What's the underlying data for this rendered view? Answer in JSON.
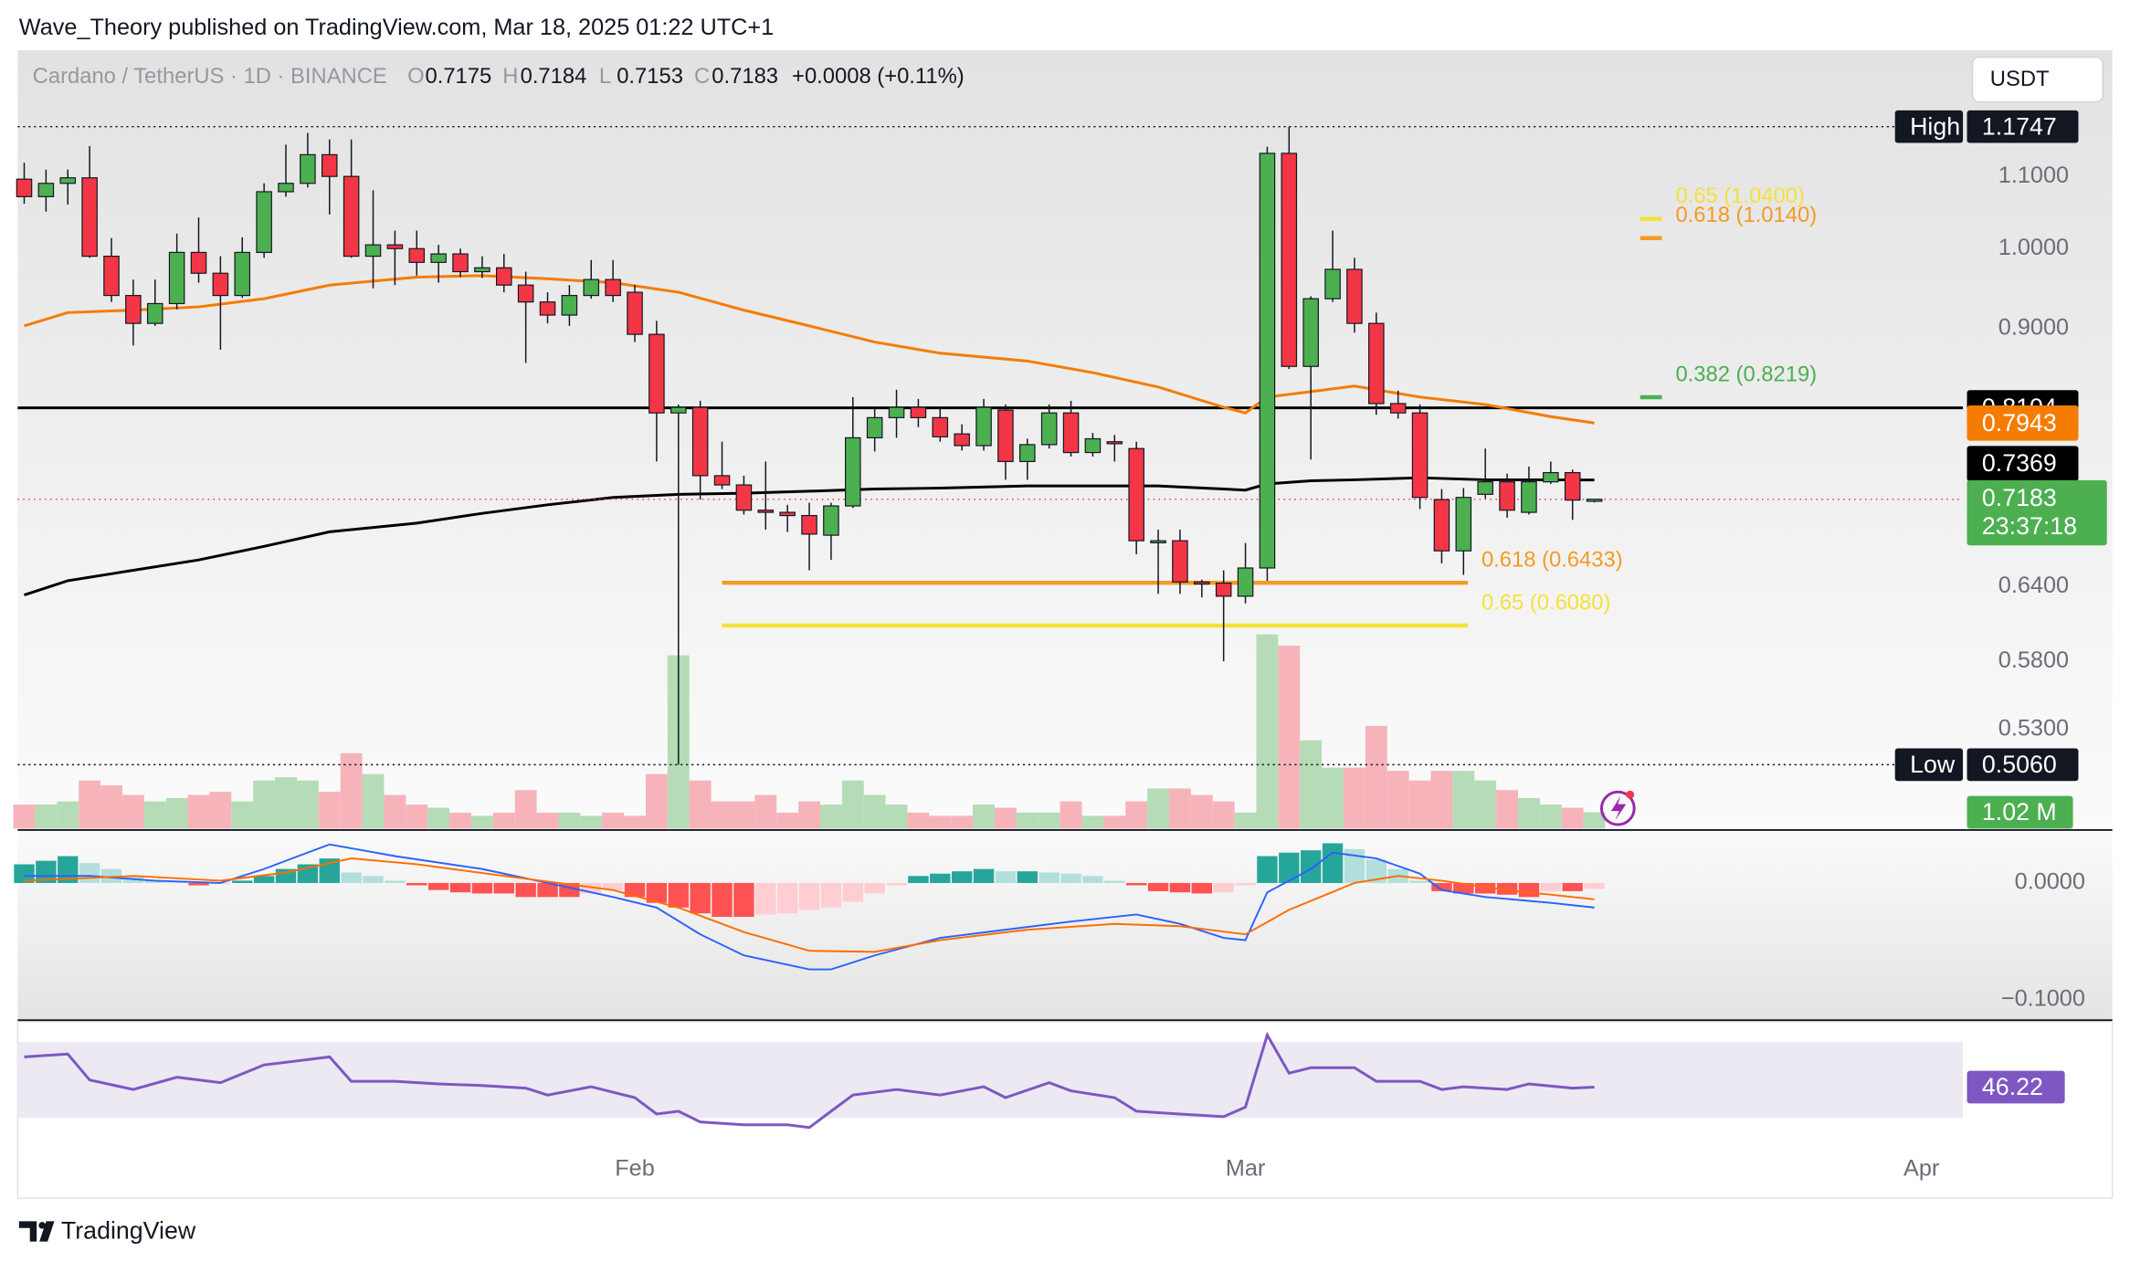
{
  "header": {
    "text": "Wave_Theory published on TradingView.com, Mar 18, 2025 01:22 UTC+1"
  },
  "footer": {
    "brand": "TradingView"
  },
  "chart_data": {
    "type": "candlestick",
    "symbol": "Cardano / TetherUS · 1D · BINANCE",
    "currency": "USDT",
    "ohlc_letters": [
      "O",
      "H",
      "L",
      "C"
    ],
    "change_label": "+0.0008 (+0.11%)",
    "countdown": "23:37:18",
    "open": [
      1.096,
      1.071,
      1.09,
      1.098,
      0.99,
      0.94,
      0.906,
      0.93,
      0.995,
      0.968,
      0.94,
      0.995,
      1.078,
      1.09,
      1.132,
      1.1,
      0.99,
      1.005,
      1.0,
      0.982,
      0.993,
      0.97,
      0.975,
      0.953,
      0.932,
      0.916,
      0.94,
      0.96,
      0.944,
      0.893,
      0.805,
      0.811,
      0.741,
      0.732,
      0.708,
      0.706,
      0.703,
      0.685,
      0.712,
      0.779,
      0.8,
      0.811,
      0.8,
      0.783,
      0.771,
      0.808,
      0.755,
      0.772,
      0.805,
      0.764,
      0.775,
      0.768,
      0.68,
      0.68,
      0.644,
      0.643,
      0.632,
      0.656,
      1.134,
      0.856,
      0.936,
      0.973,
      0.906,
      0.815,
      0.805,
      0.718,
      0.671,
      0.723,
      0.735,
      0.706,
      0.735,
      0.744,
      0.7175
    ],
    "high": [
      1.12,
      1.11,
      1.11,
      1.145,
      1.014,
      0.96,
      0.96,
      1.02,
      1.042,
      0.99,
      1.015,
      1.09,
      1.147,
      1.165,
      1.155,
      1.155,
      1.08,
      1.024,
      1.024,
      1.005,
      1.0,
      0.99,
      0.993,
      0.97,
      0.944,
      0.953,
      0.985,
      0.985,
      0.953,
      0.909,
      0.814,
      0.818,
      0.775,
      0.741,
      0.755,
      0.713,
      0.715,
      0.715,
      0.822,
      0.811,
      0.83,
      0.82,
      0.811,
      0.793,
      0.82,
      0.814,
      0.778,
      0.814,
      0.818,
      0.784,
      0.782,
      0.775,
      0.69,
      0.69,
      0.646,
      0.654,
      0.678,
      1.144,
      1.1747,
      0.939,
      1.024,
      0.988,
      0.919,
      0.829,
      0.814,
      0.728,
      0.729,
      0.768,
      0.743,
      0.75,
      0.755,
      0.747,
      0.7184
    ],
    "low": [
      1.061,
      1.05,
      1.06,
      0.988,
      0.932,
      0.88,
      0.903,
      0.923,
      0.956,
      0.875,
      0.937,
      0.988,
      1.071,
      1.084,
      1.046,
      0.988,
      0.949,
      0.953,
      0.965,
      0.956,
      0.963,
      0.962,
      0.944,
      0.86,
      0.906,
      0.903,
      0.936,
      0.932,
      0.884,
      0.755,
      0.506,
      0.718,
      0.728,
      0.704,
      0.69,
      0.688,
      0.654,
      0.663,
      0.71,
      0.765,
      0.779,
      0.79,
      0.775,
      0.766,
      0.766,
      0.737,
      0.737,
      0.768,
      0.76,
      0.76,
      0.755,
      0.668,
      0.634,
      0.634,
      0.631,
      0.58,
      0.626,
      0.645,
      0.853,
      0.757,
      0.932,
      0.895,
      0.803,
      0.799,
      0.709,
      0.66,
      0.65,
      0.719,
      0.701,
      0.704,
      0.733,
      0.699,
      0.7153
    ],
    "close": [
      1.071,
      1.09,
      1.098,
      0.99,
      0.94,
      0.906,
      0.93,
      0.995,
      0.968,
      0.94,
      0.995,
      1.078,
      1.09,
      1.132,
      1.1,
      0.99,
      1.005,
      1.0,
      0.982,
      0.993,
      0.97,
      0.975,
      0.953,
      0.932,
      0.916,
      0.94,
      0.96,
      0.94,
      0.893,
      0.805,
      0.811,
      0.741,
      0.732,
      0.708,
      0.706,
      0.703,
      0.686,
      0.712,
      0.779,
      0.8,
      0.811,
      0.8,
      0.78,
      0.771,
      0.811,
      0.755,
      0.772,
      0.805,
      0.764,
      0.778,
      0.774,
      0.68,
      0.68,
      0.644,
      0.643,
      0.632,
      0.656,
      1.134,
      0.856,
      0.936,
      0.973,
      0.906,
      0.815,
      0.805,
      0.72,
      0.671,
      0.72,
      0.735,
      0.708,
      0.735,
      0.744,
      0.7175,
      0.7183
    ],
    "up_color": "#4caf50",
    "down_color": "#f23645",
    "xlim": [
      -0.3,
      88.9
    ],
    "xticks": [
      {
        "value": 28,
        "label": "Feb"
      },
      {
        "value": 56,
        "label": "Mar"
      },
      {
        "value": 87,
        "label": "Apr"
      }
    ],
    "log_scale": true,
    "ylim": [
      0.465,
      1.297
    ],
    "yticks": [
      {
        "value": 1.1,
        "label": "1.1000"
      },
      {
        "value": 1.0,
        "label": "1.0000"
      },
      {
        "value": 0.9,
        "label": "0.9000"
      },
      {
        "value": 0.64,
        "label": "0.6400"
      },
      {
        "value": 0.58,
        "label": "0.5800"
      },
      {
        "value": 0.53,
        "label": "0.5300"
      }
    ],
    "moving_averages": [
      {
        "color": "#f57c00",
        "x": [
          0,
          2,
          5,
          8,
          11,
          14,
          18,
          21,
          24,
          27,
          30,
          33,
          36,
          39,
          42,
          46,
          49,
          52,
          55,
          56,
          57,
          59,
          61,
          64,
          67,
          70,
          72
        ],
        "values": [
          0.903,
          0.919,
          0.922,
          0.926,
          0.936,
          0.953,
          0.963,
          0.965,
          0.961,
          0.956,
          0.944,
          0.922,
          0.903,
          0.884,
          0.871,
          0.862,
          0.849,
          0.833,
          0.811,
          0.805,
          0.822,
          0.828,
          0.834,
          0.822,
          0.814,
          0.801,
          0.7943
        ]
      },
      {
        "color": "#000000",
        "x": [
          0,
          2,
          5,
          8,
          11,
          14,
          18,
          21,
          24,
          27,
          30,
          33,
          36,
          39,
          42,
          46,
          49,
          52,
          55,
          56,
          57,
          59,
          61,
          64,
          67,
          70,
          72
        ],
        "values": [
          0.633,
          0.645,
          0.654,
          0.663,
          0.675,
          0.688,
          0.696,
          0.705,
          0.713,
          0.72,
          0.723,
          0.724,
          0.726,
          0.728,
          0.729,
          0.731,
          0.731,
          0.731,
          0.728,
          0.727,
          0.733,
          0.736,
          0.737,
          0.739,
          0.737,
          0.737,
          0.7369
        ]
      }
    ],
    "levels": [
      {
        "value": 0.8104,
        "color": "#000000"
      }
    ],
    "extremes": [
      {
        "label": "High",
        "value": 1.1747
      },
      {
        "label": "Low",
        "value": 0.506,
        "value_label": "0.5060"
      }
    ],
    "fib_levels": [
      {
        "label": "0.618 (0.6433)",
        "value": 0.6433,
        "color": "#f59a23",
        "x": [
          32,
          66.2
        ]
      },
      {
        "label": "0.65 (0.6080)",
        "value": 0.608,
        "color": "#f5e13a",
        "x": [
          32,
          66.2
        ]
      },
      {
        "label": "0.382 (0.8219)",
        "value": 0.8219,
        "color": "#4caf50",
        "x": [
          74.1,
          75.1
        ]
      },
      {
        "label": "0.618 (1.0140)",
        "value": 1.014,
        "color": "#f59a23",
        "x": [
          74.1,
          75.1
        ]
      },
      {
        "label": "0.65 (1.0400)",
        "value": 1.04,
        "color": "#f5e13a",
        "x": [
          74.1,
          75.1
        ]
      }
    ],
    "volume": {
      "up_color": "#b5dcb6",
      "down_color": "#f6b4ba",
      "last_label": "1.02 M",
      "values": [
        1.5,
        1.5,
        1.7,
        3.0,
        2.7,
        2.1,
        1.7,
        1.9,
        2.1,
        2.3,
        1.7,
        3.0,
        3.2,
        3.0,
        2.3,
        4.7,
        3.4,
        2.1,
        1.5,
        1.3,
        1.0,
        0.8,
        1.0,
        2.4,
        1.0,
        1.0,
        0.8,
        1.0,
        0.8,
        3.4,
        10.8,
        3.0,
        1.7,
        1.7,
        2.1,
        1.0,
        1.7,
        1.5,
        3.0,
        2.1,
        1.5,
        1.0,
        0.8,
        0.8,
        1.5,
        1.3,
        1.0,
        1.0,
        1.7,
        0.8,
        0.8,
        1.7,
        2.5,
        2.5,
        2.1,
        1.7,
        1.0,
        12.1,
        11.4,
        5.5,
        3.8,
        3.8,
        6.4,
        3.6,
        3.0,
        3.6,
        3.6,
        3.0,
        2.4,
        1.9,
        1.5,
        1.3,
        1.02
      ]
    },
    "macd": {
      "ylim": [
        -0.1163,
        0.0442
      ],
      "yticks": [
        {
          "value": 0,
          "label": "0.0000"
        },
        {
          "value": -0.1,
          "label": "−0.1000"
        }
      ],
      "hist_colors": [
        "#26a69a",
        "#b2dfdb",
        "#ff5252",
        "#ffcdd2"
      ],
      "histogram": [
        0.016,
        0.019,
        0.023,
        0.017,
        0.012,
        0.006,
        0.002,
        0.0005,
        -0.002,
        -0.001,
        0.002,
        0.006,
        0.012,
        0.016,
        0.021,
        0.009,
        0.006,
        0.002,
        -0.002,
        -0.006,
        -0.008,
        -0.009,
        -0.009,
        -0.012,
        -0.012,
        -0.012,
        -0.009,
        -0.006,
        -0.012,
        -0.017,
        -0.021,
        -0.026,
        -0.029,
        -0.029,
        -0.027,
        -0.026,
        -0.023,
        -0.021,
        -0.016,
        -0.009,
        -0.002,
        0.006,
        0.008,
        0.01,
        0.012,
        0.01,
        0.01,
        0.009,
        0.008,
        0.006,
        0.002,
        -0.002,
        -0.007,
        -0.008,
        -0.009,
        -0.008,
        -0.002,
        0.023,
        0.026,
        0.028,
        0.034,
        0.029,
        0.02,
        0.012,
        0.002,
        -0.007,
        -0.009,
        -0.009,
        -0.01,
        -0.012,
        -0.007,
        -0.007,
        -0.005
      ],
      "macd_line": {
        "color": "#2962ff",
        "x": [
          0,
          3,
          6,
          9,
          11,
          13,
          14,
          17,
          21,
          24,
          27,
          29,
          31,
          33,
          36,
          37,
          39,
          42,
          45,
          48,
          51,
          53,
          55,
          56,
          57,
          59,
          60,
          62,
          64,
          65,
          67,
          70,
          72
        ],
        "values": [
          0.006,
          0.006,
          0.002,
          0,
          0.012,
          0.026,
          0.033,
          0.023,
          0.012,
          0,
          -0.012,
          -0.021,
          -0.044,
          -0.062,
          -0.074,
          -0.074,
          -0.062,
          -0.047,
          -0.04,
          -0.033,
          -0.027,
          -0.035,
          -0.047,
          -0.049,
          -0.008,
          0.012,
          0.026,
          0.021,
          0.008,
          -0.006,
          -0.012,
          -0.017,
          -0.021
        ]
      },
      "signal_line": {
        "color": "#ff6d00",
        "x": [
          0,
          5,
          9,
          12,
          15,
          18,
          22,
          27,
          30,
          33,
          36,
          39,
          42,
          46,
          50,
          53,
          56,
          58,
          61,
          63,
          65,
          68,
          72
        ],
        "values": [
          0.002,
          0.006,
          0.002,
          0.009,
          0.021,
          0.016,
          0.006,
          -0.006,
          -0.021,
          -0.042,
          -0.058,
          -0.059,
          -0.049,
          -0.04,
          -0.035,
          -0.037,
          -0.044,
          -0.023,
          0,
          0.006,
          0.002,
          -0.006,
          -0.014
        ]
      }
    },
    "rsi": {
      "ylim": [
        -10.7,
        80.7
      ],
      "band": [
        30,
        70
      ],
      "color": "#7e57c2",
      "band_color": "#ece9f3",
      "x": [
        0,
        2,
        3,
        5,
        7,
        9,
        11,
        12,
        14,
        15,
        17,
        19,
        21,
        23,
        24,
        26,
        28,
        29,
        30,
        31,
        33,
        35,
        36,
        37,
        38,
        40,
        42,
        44,
        45,
        47,
        48,
        50,
        51,
        53,
        55,
        56,
        57,
        58,
        59,
        61,
        62,
        64,
        65,
        66,
        68,
        69,
        71,
        72
      ],
      "values": [
        62.1,
        63.6,
        50,
        45,
        51.4,
        48.6,
        57.9,
        59.3,
        62.1,
        49.3,
        49.3,
        47.9,
        47.1,
        45.7,
        42.1,
        46.4,
        40.7,
        32.1,
        33.6,
        27.9,
        26.4,
        26.4,
        25,
        33.6,
        42.1,
        45,
        42.1,
        46.4,
        40.7,
        48.6,
        44.3,
        40.7,
        33.6,
        32.1,
        30.7,
        35.7,
        73.6,
        53.6,
        56.4,
        56.4,
        49.3,
        49.3,
        45,
        46.4,
        45,
        47.9,
        45.7,
        46.22
      ]
    }
  }
}
